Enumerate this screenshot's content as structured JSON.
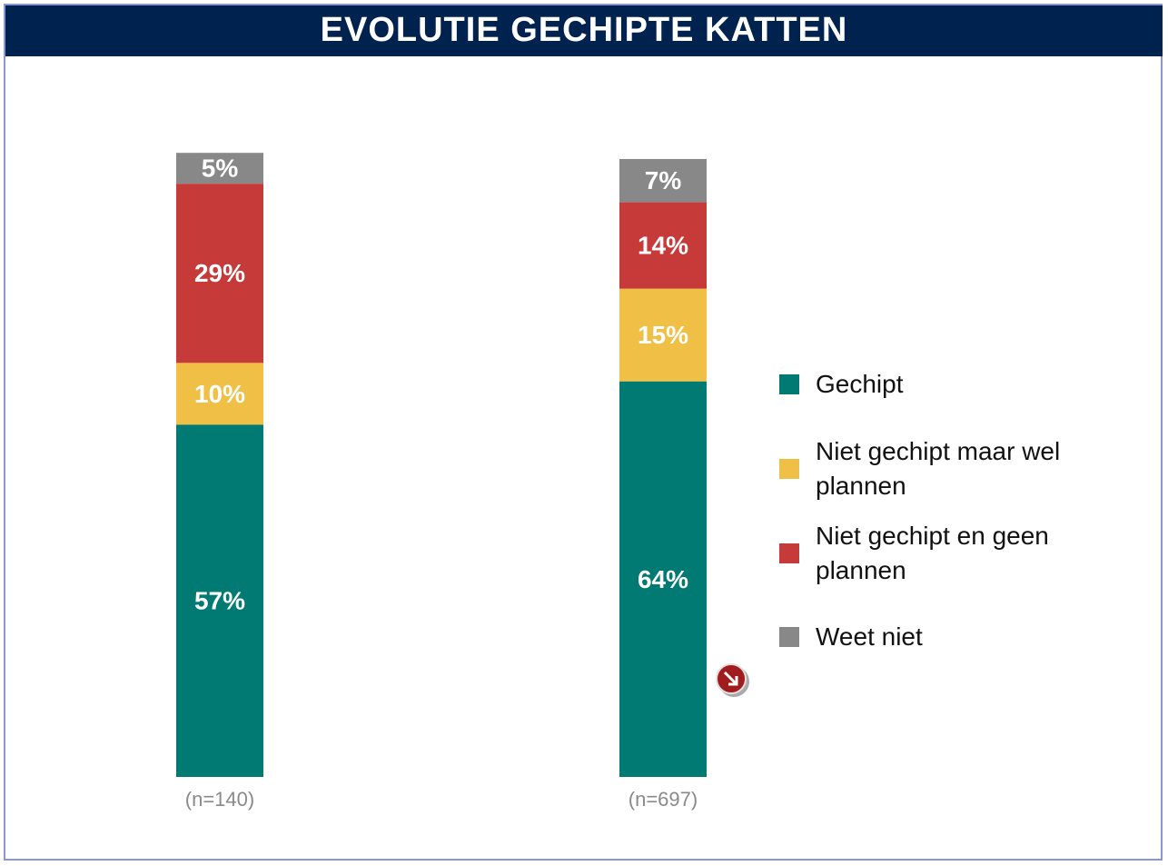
{
  "chart_data": {
    "type": "stacked_bar",
    "title": "EVOLUTIE GECHIPTE KATTEN",
    "categories": [
      "(n=140)",
      "(n=697)"
    ],
    "series": [
      {
        "name": "Gechipt",
        "color": "#007a73",
        "values": [
          57,
          64
        ],
        "value_labels": [
          "57%",
          "64%"
        ]
      },
      {
        "name": "Niet gechipt maar wel plannen",
        "color": "#f0bf45",
        "values": [
          10,
          15
        ],
        "value_labels": [
          "10%",
          "15%"
        ]
      },
      {
        "name": "Niet gechipt en geen plannen",
        "color": "#c63a3a",
        "values": [
          29,
          14
        ],
        "value_labels": [
          "29%",
          "14%"
        ]
      },
      {
        "name": "Weet niet",
        "color": "#888888",
        "values": [
          5,
          7
        ],
        "value_labels": [
          "5%",
          "7%"
        ]
      }
    ]
  }
}
